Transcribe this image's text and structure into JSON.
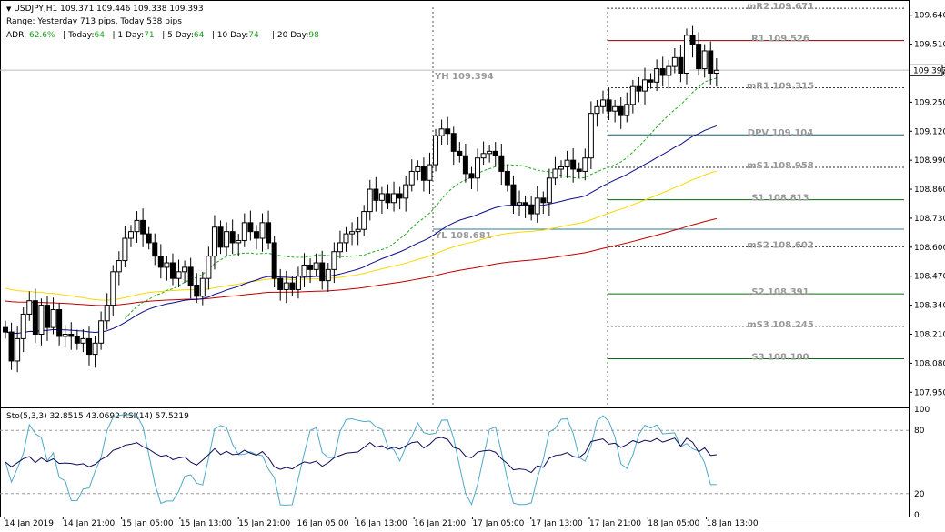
{
  "header": {
    "symbol_line": "USDJPY,H1  109.371 109.446 109.338 109.393",
    "range_line": "Range: Yesterday 713 pips, Today 538 pips",
    "adr": {
      "label": "ADR:",
      "pct": "62.6%",
      "items": [
        {
          "label": "| Today:",
          "value": "64"
        },
        {
          "label": "| 1 Day:",
          "value": "71"
        },
        {
          "label": "| 5 Day:",
          "value": "64"
        },
        {
          "label": "| 10 Day:",
          "value": "74"
        },
        {
          "label": "| 20 Day:",
          "value": "98"
        }
      ]
    }
  },
  "indicator_label": "Sto(5,3,3) 32.8515 43.0692  RSI(14) 57.5219",
  "chart_data": {
    "type": "candlestick",
    "symbol": "USDJPY",
    "timeframe": "H1",
    "current_price": 109.393,
    "current_price_label": "109.393",
    "ylim": [
      107.89,
      109.7
    ],
    "y_ticks": [
      "109.640",
      "109.510",
      "109.380",
      "109.250",
      "109.120",
      "108.990",
      "108.860",
      "108.730",
      "108.600",
      "108.470",
      "108.340",
      "108.210",
      "108.080",
      "107.950"
    ],
    "x_ticks": [
      "14 Jan 2019",
      "14 Jan 21:00",
      "15 Jan 05:00",
      "15 Jan 13:00",
      "15 Jan 21:00",
      "16 Jan 05:00",
      "16 Jan 13:00",
      "16 Jan 21:00",
      "17 Jan 05:00",
      "17 Jan 13:00",
      "17 Jan 21:00",
      "18 Jan 05:00",
      "18 Jan 13:00"
    ],
    "closes": [
      108.22,
      108.09,
      108.19,
      108.3,
      108.36,
      108.21,
      108.34,
      108.24,
      108.32,
      108.2,
      108.21,
      108.2,
      108.17,
      108.19,
      108.12,
      108.17,
      108.27,
      108.34,
      108.49,
      108.54,
      108.64,
      108.67,
      108.72,
      108.66,
      108.62,
      108.56,
      108.51,
      108.53,
      108.46,
      108.49,
      108.51,
      108.43,
      108.38,
      108.46,
      108.56,
      108.69,
      108.6,
      108.67,
      108.62,
      108.63,
      108.71,
      108.67,
      108.64,
      108.71,
      108.62,
      108.46,
      108.41,
      108.44,
      108.41,
      108.47,
      108.52,
      108.5,
      108.53,
      108.45,
      108.5,
      108.58,
      108.62,
      108.66,
      108.67,
      108.68,
      108.76,
      108.86,
      108.81,
      108.84,
      108.8,
      108.84,
      108.82,
      108.88,
      108.94,
      108.96,
      108.9,
      108.97,
      109.1,
      109.13,
      109.11,
      109.03,
      109.01,
      108.93,
      108.91,
      109.0,
      109.02,
      109.03,
      109.01,
      108.94,
      108.88,
      108.79,
      108.8,
      108.79,
      108.75,
      108.82,
      108.8,
      108.91,
      108.95,
      108.96,
      108.99,
      108.95,
      108.94,
      109.0,
      109.2,
      109.23,
      109.26,
      109.21,
      109.23,
      109.19,
      109.24,
      109.32,
      109.3,
      109.35,
      109.34,
      109.4,
      109.37,
      109.41,
      109.45,
      109.38,
      109.55,
      109.51,
      109.4,
      109.48,
      109.38,
      109.393
    ],
    "levels": [
      {
        "label": "mR2 109.671",
        "value": 109.671,
        "color": "#333333",
        "style": "dotted"
      },
      {
        "label": "R1 109.526",
        "value": 109.526,
        "color": "#8b0000",
        "style": "solid"
      },
      {
        "label": "mR1 109.315",
        "value": 109.315,
        "color": "#333333",
        "style": "dotted"
      },
      {
        "label": "DPV 109.104",
        "value": 109.104,
        "color": "#0e5f78",
        "style": "solid"
      },
      {
        "label": "mS1 108.958",
        "value": 108.958,
        "color": "#333333",
        "style": "dotted"
      },
      {
        "label": "S1 108.813",
        "value": 108.813,
        "color": "#0a6b0a",
        "style": "solid"
      },
      {
        "label": "mS2 108.602",
        "value": 108.602,
        "color": "#333333",
        "style": "dotted"
      },
      {
        "label": "S2 108.391",
        "value": 108.391,
        "color": "#0a6b0a",
        "style": "solid"
      },
      {
        "label": "mS3 108.245",
        "value": 108.245,
        "color": "#333333",
        "style": "dotted"
      },
      {
        "label": "S3 108.100",
        "value": 108.1,
        "color": "#0a6b0a",
        "style": "solid"
      }
    ],
    "yesterday_high": {
      "label": "YH 109.394",
      "value": 109.394
    },
    "yesterday_low": {
      "label": "YL 108.681",
      "value": 108.681
    },
    "ma_colors": {
      "blue": "#0b0b8a",
      "red": "#c00000",
      "yellow": "#ffd700",
      "green": "#22aa22"
    },
    "oscillator": {
      "ylim": [
        0,
        100
      ],
      "ticks": [
        "100",
        "80",
        "20",
        "0"
      ],
      "levels": [
        80,
        20
      ],
      "sto_color": "#4fa8c8",
      "rsi_color": "#0b0b5a",
      "sto_last": 32.8515,
      "sto_signal_last": 43.0692,
      "rsi_last": 57.5219
    }
  }
}
